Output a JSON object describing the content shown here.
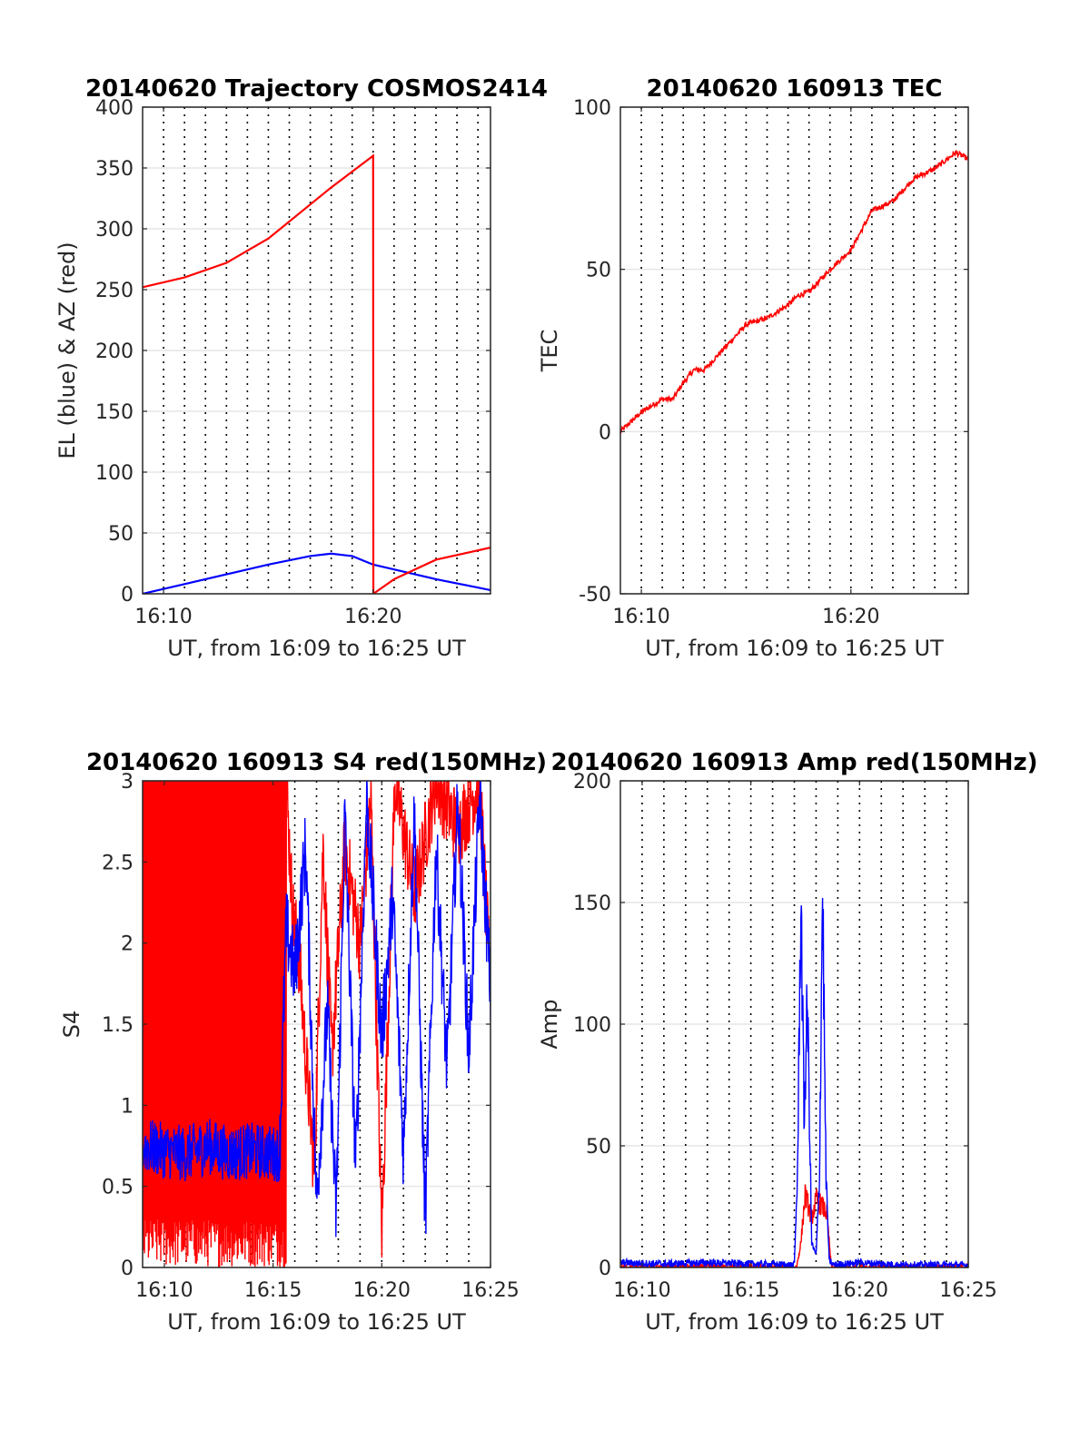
{
  "chart_data": [
    {
      "id": "trajectory",
      "type": "line",
      "title": "20140620 Trajectory COSMOS2414",
      "xlabel": "UT, from 16:09 to 16:25 UT",
      "ylabel": "EL (blue) & AZ (red)",
      "xlim": [
        0,
        16.6
      ],
      "ylim": [
        0,
        400
      ],
      "x_ticks": [
        {
          "x": 1,
          "label": "16:10"
        },
        {
          "x": 11,
          "label": "16:20"
        }
      ],
      "y_ticks": [
        0,
        50,
        100,
        150,
        200,
        250,
        300,
        350,
        400
      ],
      "vlines_dotted_minutes": [
        1,
        2,
        3,
        4,
        5,
        6,
        7,
        8,
        9,
        10,
        11,
        12,
        13,
        14,
        15,
        16
      ],
      "grid": true,
      "series": [
        {
          "color": "#0000ff",
          "x": [
            0,
            2,
            4,
            6,
            8,
            9,
            10,
            11,
            12,
            14,
            16.6
          ],
          "y": [
            0,
            8,
            16,
            24,
            31,
            33,
            31,
            24,
            20,
            12,
            3
          ]
        },
        {
          "color": "#ff0000",
          "x": [
            0,
            2,
            4,
            6,
            8,
            9,
            10,
            11,
            11.01,
            12,
            14,
            16.6
          ],
          "y": [
            252,
            260,
            272,
            292,
            320,
            334,
            347,
            360,
            0,
            12,
            28,
            38
          ]
        }
      ]
    },
    {
      "id": "tec",
      "type": "line",
      "title": "20140620 160913 TEC",
      "xlabel": "UT, from 16:09 to 16:25 UT",
      "ylabel": "TEC",
      "xlim": [
        0,
        16.6
      ],
      "ylim": [
        -50,
        100
      ],
      "x_ticks": [
        {
          "x": 1,
          "label": "16:10"
        },
        {
          "x": 11,
          "label": "16:20"
        }
      ],
      "y_ticks": [
        -50,
        0,
        50,
        100
      ],
      "vlines_dotted_minutes": [
        1,
        2,
        3,
        4,
        5,
        6,
        7,
        8,
        9,
        10,
        11,
        12,
        13,
        14,
        15,
        16
      ],
      "grid": true,
      "series": [
        {
          "color": "#ff0000",
          "x": [
            0,
            1,
            2,
            2.5,
            3,
            3.5,
            4,
            5,
            6,
            7,
            8,
            8.5,
            9,
            10,
            11,
            12,
            13,
            14,
            15,
            16,
            16.6
          ],
          "y": [
            0,
            6,
            10,
            10,
            15,
            19,
            19,
            26,
            33,
            35,
            39,
            42,
            43,
            50,
            56,
            68,
            71,
            78,
            81,
            86,
            84
          ]
        }
      ]
    },
    {
      "id": "s4",
      "type": "line",
      "title": "20140620 160913 S4 red(150MHz)",
      "xlabel": "UT, from 16:09 to 16:25 UT",
      "ylabel": "S4",
      "xlim": [
        0,
        16
      ],
      "ylim": [
        0,
        3
      ],
      "x_ticks": [
        {
          "x": 1,
          "label": "16:10"
        },
        {
          "x": 6,
          "label": "16:15"
        },
        {
          "x": 11,
          "label": "16:20"
        },
        {
          "x": 16,
          "label": "16:25"
        }
      ],
      "y_ticks": [
        {
          "v": 0,
          "label": "0"
        },
        {
          "v": 0.5,
          "label": "0.5"
        },
        {
          "v": 1,
          "label": "1"
        },
        {
          "v": 1.5,
          "label": "1.5"
        },
        {
          "v": 2,
          "label": "2"
        },
        {
          "v": 2.5,
          "label": "2.5"
        },
        {
          "v": 3,
          "label": "3"
        }
      ],
      "vlines_dotted_minutes": [
        1,
        2,
        3,
        4,
        5,
        6,
        7,
        8,
        9,
        10,
        11,
        12,
        13,
        14,
        15
      ],
      "grid": true,
      "series": [
        {
          "color": "#ff0000",
          "x": [
            0,
            6.6,
            6.9,
            7.2,
            7.5,
            7.9,
            8.3,
            8.7,
            9.3,
            10,
            10.5,
            11,
            11.6,
            12.5,
            13.5,
            14.5,
            15.5,
            16
          ],
          "y": [
            3,
            3,
            2.2,
            1.9,
            1.3,
            0.6,
            2.6,
            1.3,
            2.6,
            2.0,
            2.9,
            0.2,
            3.0,
            2.3,
            3.0,
            2.7,
            3.0,
            1.7
          ]
        },
        {
          "color": "#0000ff",
          "x": [
            0,
            1,
            2,
            3,
            4,
            5,
            6.3,
            6.6,
            7,
            7.5,
            8.0,
            8.5,
            8.9,
            9.3,
            9.8,
            10.3,
            11,
            11.5,
            12,
            12.5,
            13,
            13.5,
            14,
            14.5,
            15,
            15.5,
            16
          ],
          "y": [
            0.75,
            0.72,
            0.7,
            0.75,
            0.7,
            0.72,
            0.7,
            2.1,
            1.8,
            2.6,
            0.4,
            1.6,
            0.3,
            2.8,
            0.6,
            2.9,
            1.4,
            2.3,
            0.7,
            2.8,
            0.3,
            2.6,
            1.2,
            2.9,
            1.3,
            2.9,
            1.7
          ]
        }
      ]
    },
    {
      "id": "amp",
      "type": "line",
      "title": "20140620 160913 Amp red(150MHz)",
      "xlabel": "UT, from 16:09 to 16:25 UT",
      "ylabel": "Amp",
      "xlim": [
        0,
        16
      ],
      "ylim": [
        0,
        200
      ],
      "x_ticks": [
        {
          "x": 1,
          "label": "16:10"
        },
        {
          "x": 6,
          "label": "16:15"
        },
        {
          "x": 11,
          "label": "16:20"
        },
        {
          "x": 16,
          "label": "16:25"
        }
      ],
      "y_ticks": [
        0,
        50,
        100,
        150,
        200
      ],
      "vlines_dotted_minutes": [
        1,
        2,
        3,
        4,
        5,
        6,
        7,
        8,
        9,
        10,
        11,
        12,
        13,
        14,
        15
      ],
      "grid": true,
      "series": [
        {
          "color": "#ff0000",
          "x": [
            0,
            8.1,
            8.3,
            8.5,
            8.8,
            9.0,
            9.3,
            9.5,
            9.7,
            16
          ],
          "y": [
            0,
            0,
            10,
            30,
            20,
            28,
            25,
            22,
            0,
            0
          ]
        },
        {
          "color": "#0000ff",
          "x": [
            0,
            2,
            4,
            6,
            8.0,
            8.15,
            8.3,
            8.45,
            8.6,
            8.8,
            9.0,
            9.15,
            9.3,
            9.45,
            9.6,
            9.8,
            11,
            13,
            16
          ],
          "y": [
            2,
            1.5,
            2,
            1.5,
            1,
            40,
            155,
            60,
            110,
            10,
            5,
            35,
            157,
            40,
            3,
            1,
            2,
            1,
            1
          ]
        }
      ]
    }
  ]
}
